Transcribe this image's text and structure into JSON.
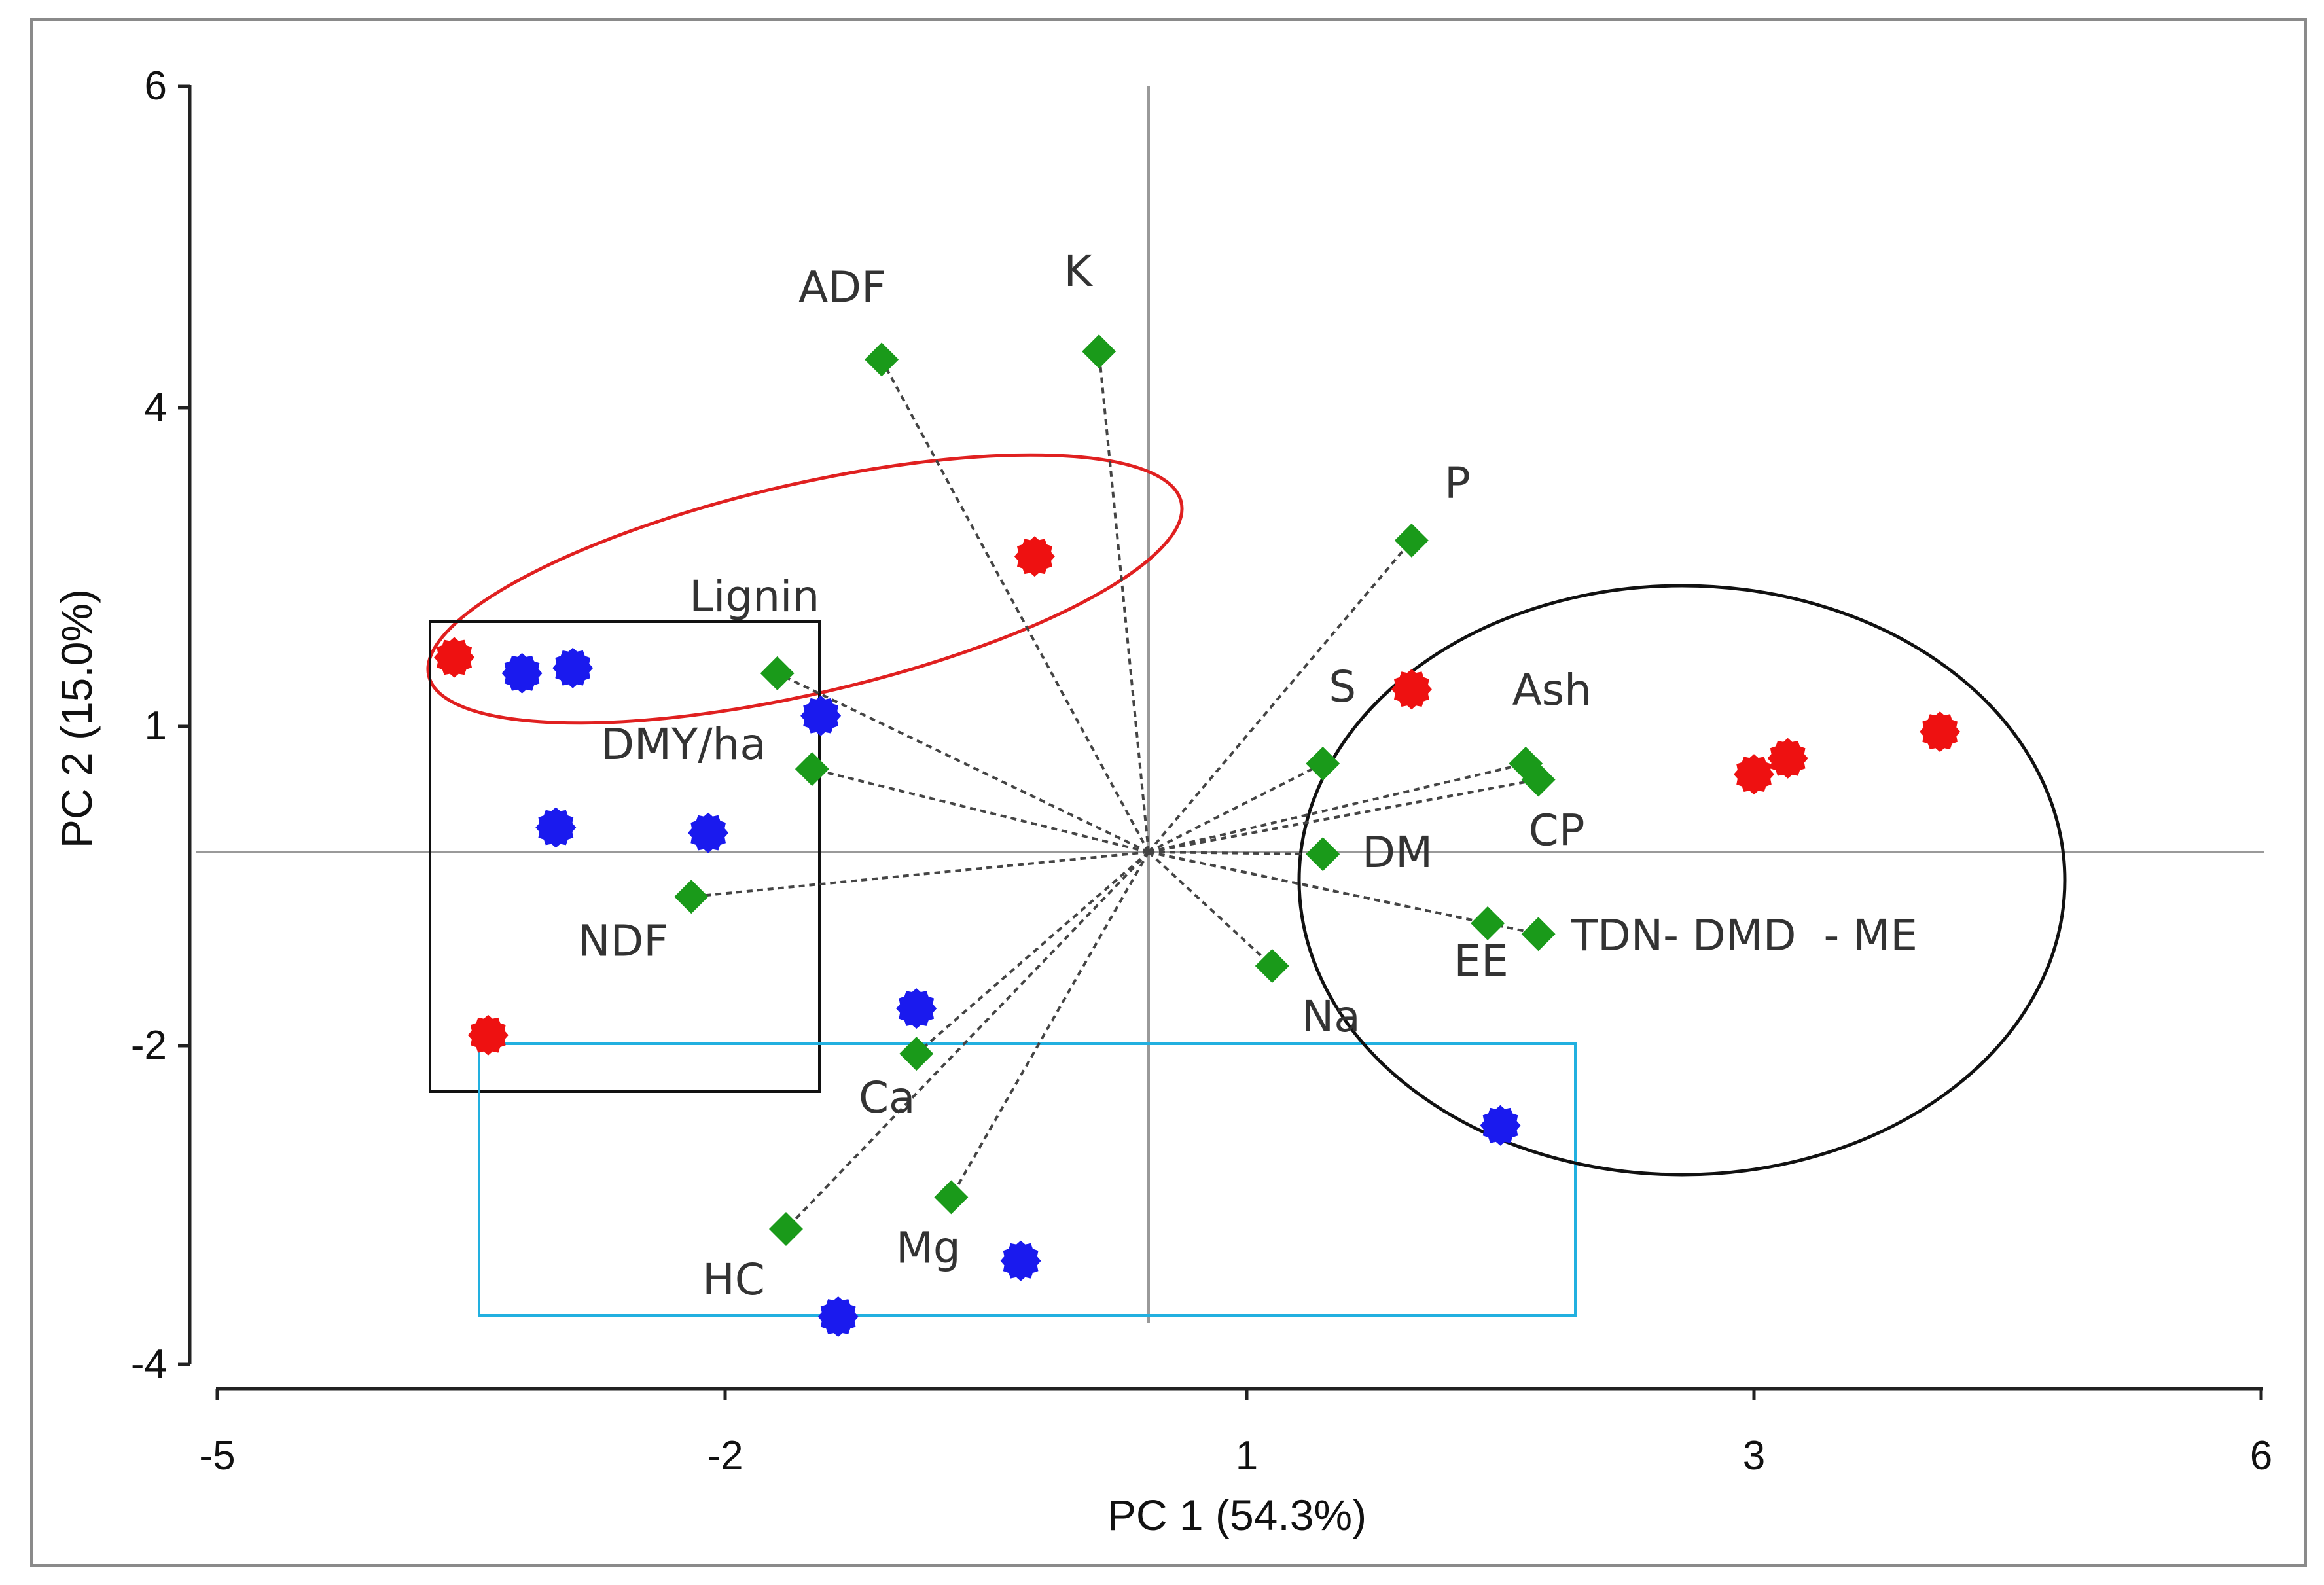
{
  "chart_data": {
    "type": "scatter",
    "title": "",
    "xlabel": "PC 1 (54.3%)",
    "ylabel": "PC 2 (15.0%)",
    "xlim": [
      -5,
      6
    ],
    "ylim": [
      -4,
      6
    ],
    "x_ticks": [
      -5,
      -2,
      1,
      3,
      6
    ],
    "y_ticks": [
      6,
      4,
      1,
      -2,
      -4
    ],
    "origin": [
      0.0,
      0.0
    ],
    "grid": false,
    "legend": "none",
    "colors": {
      "red_points": "#ee1111",
      "blue_points": "#1a1aee",
      "variables": "#1a9a1a",
      "loading_lines": "#444444",
      "red_ellipse": "#e02020",
      "black_box": "#111111",
      "cyan_box": "#22b0e0",
      "black_ellipse": "#111111"
    },
    "series": [
      {
        "type": "scatter",
        "color": "red",
        "points": [
          [
            -3.6,
            1.65
          ],
          [
            -3.4,
            -1.9
          ],
          [
            -0.22,
            2.6
          ],
          [
            1.65,
            1.35
          ],
          [
            3.0,
            0.55
          ],
          [
            3.2,
            0.7
          ],
          [
            4.1,
            0.95
          ]
        ]
      },
      {
        "type": "scatter",
        "color": "blue",
        "points": [
          [
            -3.2,
            1.5
          ],
          [
            -2.9,
            1.55
          ],
          [
            -1.45,
            1.1
          ],
          [
            -3.0,
            0.05
          ],
          [
            -2.1,
            0.0
          ],
          [
            -0.9,
            -1.65
          ],
          [
            -1.35,
            -3.7
          ],
          [
            -0.3,
            -3.35
          ],
          [
            2.0,
            -2.5
          ]
        ]
      },
      {
        "type": "loadings",
        "color": "green",
        "points": [
          {
            "label": "ADF",
            "x": -1.1,
            "y": 4.3
          },
          {
            "label": "K",
            "x": 0.15,
            "y": 4.35
          },
          {
            "label": "Lignin",
            "x": -1.7,
            "y": 1.5
          },
          {
            "label": "DMY/ha",
            "x": -1.5,
            "y": 0.6
          },
          {
            "label": "NDF",
            "x": -2.2,
            "y": -0.6
          },
          {
            "label": "P",
            "x": 1.65,
            "y": 2.75
          },
          {
            "label": "S",
            "x": 1.3,
            "y": 0.65
          },
          {
            "label": "Ash",
            "x": 2.1,
            "y": 0.65
          },
          {
            "label": "CP",
            "x": 2.15,
            "y": 0.5
          },
          {
            "label": "DM",
            "x": 1.3,
            "y": -0.2
          },
          {
            "label": "EE",
            "x": 1.95,
            "y": -0.85
          },
          {
            "label": "TDN- DMD  - ME",
            "x": 2.15,
            "y": -0.95
          },
          {
            "label": "Na",
            "x": 1.1,
            "y": -1.25
          },
          {
            "label": "Ca",
            "x": -0.9,
            "y": -2.05
          },
          {
            "label": "HC",
            "x": -1.65,
            "y": -3.15
          },
          {
            "label": "Mg",
            "x": -0.7,
            "y": -2.95
          }
        ]
      }
    ]
  }
}
